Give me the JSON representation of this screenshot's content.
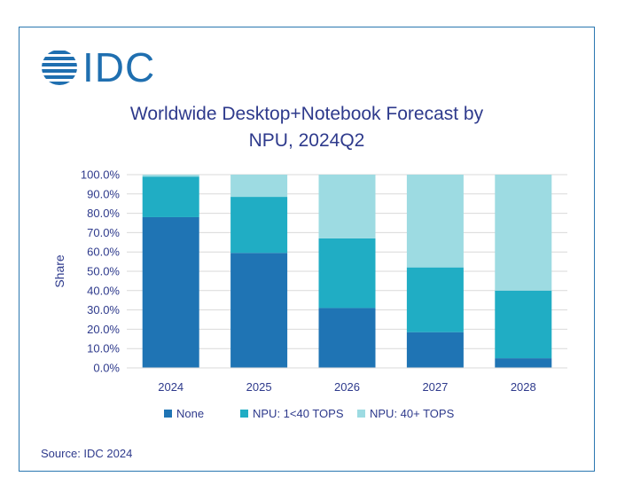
{
  "logo": {
    "text": "IDC"
  },
  "source": "Source: IDC 2024",
  "colors": {
    "none": "#1f74b4",
    "npu_low": "#20adc4",
    "npu_high": "#9ddbe2",
    "title": "#2e3a8c",
    "axis_text": "#2e3a8c",
    "frame": "#2a77b0"
  },
  "chart_data": {
    "type": "bar",
    "stacked": true,
    "title_line1": "Worldwide Desktop+Notebook Forecast by",
    "title_line2": "NPU, 2024Q2",
    "xlabel": "",
    "ylabel": "Share",
    "ylim": [
      0,
      100
    ],
    "yticks": [
      "0.0%",
      "10.0%",
      "20.0%",
      "30.0%",
      "40.0%",
      "50.0%",
      "60.0%",
      "70.0%",
      "80.0%",
      "90.0%",
      "100.0%"
    ],
    "categories": [
      "2024",
      "2025",
      "2026",
      "2027",
      "2028"
    ],
    "series": [
      {
        "name": "None",
        "key": "none",
        "values": [
          78,
          59.5,
          31,
          18.5,
          5
        ]
      },
      {
        "name": "NPU: 1<40 TOPS",
        "key": "npu_low",
        "values": [
          21,
          29,
          36,
          33.5,
          35
        ]
      },
      {
        "name": "NPU: 40+ TOPS",
        "key": "npu_high",
        "values": [
          1,
          11.5,
          33,
          48,
          60
        ]
      }
    ],
    "legend_position": "bottom"
  }
}
